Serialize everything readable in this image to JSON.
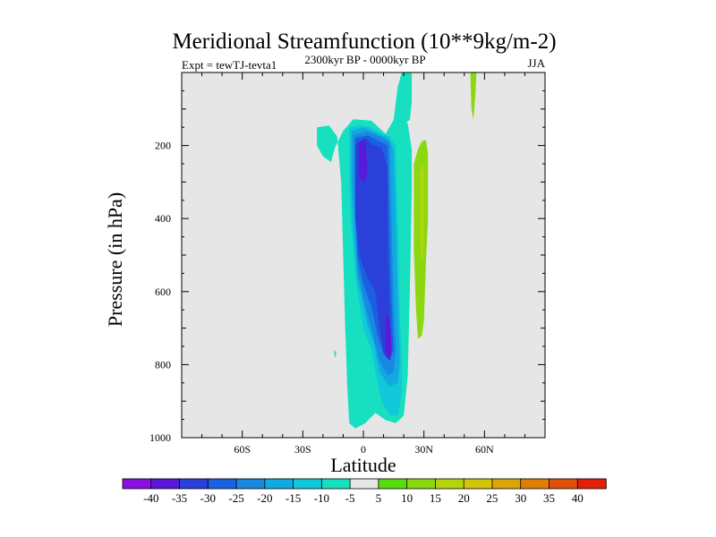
{
  "chart_data": {
    "type": "contour",
    "title": "Meridional Streamfunction (10**9kg/m-2)",
    "subtitle_left": "Expt = tewTJ-tevta1",
    "subtitle_center": "2300kyr BP - 0000kyr BP",
    "subtitle_right": "JJA",
    "xlabel": "Latitude",
    "ylabel": "Pressure (in hPa)",
    "x_ticks": [
      {
        "value": -60,
        "label": "60S"
      },
      {
        "value": -30,
        "label": "30S"
      },
      {
        "value": 0,
        "label": "0"
      },
      {
        "value": 30,
        "label": "30N"
      },
      {
        "value": 60,
        "label": "60N"
      }
    ],
    "y_ticks": [
      {
        "value": 200,
        "label": "200"
      },
      {
        "value": 400,
        "label": "400"
      },
      {
        "value": 600,
        "label": "600"
      },
      {
        "value": 800,
        "label": "800"
      },
      {
        "value": 1000,
        "label": "1000"
      }
    ],
    "xlim": [
      -90,
      90
    ],
    "ylim": [
      1000,
      0
    ],
    "colorbar": {
      "labels": [
        "-40",
        "-35",
        "-30",
        "-25",
        "-20",
        "-15",
        "-10",
        "-5",
        "5",
        "10",
        "15",
        "20",
        "25",
        "30",
        "35",
        "40"
      ],
      "colors": [
        "#8a10e0",
        "#5a18d8",
        "#2a40d8",
        "#1a60e0",
        "#1888e0",
        "#12a8e0",
        "#10c8d8",
        "#16e0c0",
        "#e6e6e6",
        "#58dc10",
        "#8cd810",
        "#b4d40c",
        "#d2c408",
        "#dca408",
        "#e07c08",
        "#e05008",
        "#e02008"
      ]
    },
    "regions": [
      {
        "level": "-5",
        "points": [
          [
            -23,
            150
          ],
          [
            -17,
            145
          ],
          [
            -13,
            175
          ],
          [
            -11,
            300
          ],
          [
            -10,
            500
          ],
          [
            -9,
            700
          ],
          [
            -8,
            860
          ],
          [
            -7,
            960
          ],
          [
            -4,
            975
          ],
          [
            1,
            960
          ],
          [
            6,
            932
          ],
          [
            11,
            952
          ],
          [
            16,
            960
          ],
          [
            20,
            940
          ],
          [
            22,
            830
          ],
          [
            23,
            600
          ],
          [
            24,
            320
          ],
          [
            24,
            210
          ],
          [
            22,
            140
          ],
          [
            19,
            115
          ],
          [
            15,
            130
          ],
          [
            11,
            168
          ],
          [
            4,
            132
          ],
          [
            -5,
            128
          ],
          [
            -10,
            160
          ],
          [
            -14,
            205
          ],
          [
            -16,
            245
          ],
          [
            -20,
            230
          ],
          [
            -23,
            200
          ]
        ]
      },
      {
        "level": "-5",
        "points": [
          [
            15,
            130
          ],
          [
            17,
            40
          ],
          [
            19,
            0
          ],
          [
            24,
            0
          ],
          [
            24,
            80
          ],
          [
            23,
            130
          ],
          [
            20,
            140
          ]
        ]
      },
      {
        "level": "-5",
        "points": [
          [
            -14.5,
            760
          ],
          [
            -13.5,
            765
          ],
          [
            -13.7,
            780
          ],
          [
            -14.2,
            778
          ]
        ]
      },
      {
        "level": "-10",
        "points": [
          [
            -7,
            150
          ],
          [
            -2,
            145
          ],
          [
            4,
            150
          ],
          [
            9,
            168
          ],
          [
            13,
            175
          ],
          [
            16,
            200
          ],
          [
            17,
            400
          ],
          [
            18,
            650
          ],
          [
            19,
            800
          ],
          [
            19,
            880
          ],
          [
            17,
            940
          ],
          [
            13,
            938
          ],
          [
            9,
            900
          ],
          [
            6,
            820
          ],
          [
            4,
            760
          ],
          [
            0,
            700
          ],
          [
            -4,
            560
          ],
          [
            -6,
            420
          ],
          [
            -7,
            300
          ]
        ]
      },
      {
        "level": "-15",
        "points": [
          [
            -6,
            160
          ],
          [
            0,
            150
          ],
          [
            6,
            165
          ],
          [
            12,
            178
          ],
          [
            15,
            210
          ],
          [
            16,
            400
          ],
          [
            17,
            620
          ],
          [
            18,
            790
          ],
          [
            17,
            850
          ],
          [
            13,
            860
          ],
          [
            8,
            820
          ],
          [
            5,
            740
          ],
          [
            2,
            690
          ],
          [
            -3,
            560
          ],
          [
            -5,
            420
          ],
          [
            -6,
            300
          ]
        ]
      },
      {
        "level": "-20",
        "points": [
          [
            -5,
            170
          ],
          [
            2,
            162
          ],
          [
            8,
            175
          ],
          [
            13,
            190
          ],
          [
            14,
            420
          ],
          [
            15,
            620
          ],
          [
            16,
            760
          ],
          [
            15,
            820
          ],
          [
            12,
            830
          ],
          [
            8,
            790
          ],
          [
            4,
            700
          ],
          [
            1,
            640
          ],
          [
            -3,
            540
          ],
          [
            -4,
            420
          ],
          [
            -5,
            300
          ]
        ]
      },
      {
        "level": "-25",
        "points": [
          [
            -4,
            180
          ],
          [
            2,
            172
          ],
          [
            7,
            185
          ],
          [
            12,
            200
          ],
          [
            13,
            430
          ],
          [
            14,
            630
          ],
          [
            15,
            760
          ],
          [
            13,
            790
          ],
          [
            10,
            770
          ],
          [
            7,
            720
          ],
          [
            4,
            640
          ],
          [
            0,
            580
          ],
          [
            -3,
            500
          ],
          [
            -4,
            330
          ]
        ]
      },
      {
        "level": "-30",
        "points": [
          [
            -4,
            195
          ],
          [
            1,
            180
          ],
          [
            5,
            200
          ],
          [
            9,
            205
          ],
          [
            12,
            260
          ],
          [
            12,
            460
          ],
          [
            13,
            640
          ],
          [
            14,
            760
          ],
          [
            13,
            790
          ],
          [
            10,
            770
          ],
          [
            8,
            700
          ],
          [
            6,
            600
          ],
          [
            2,
            560
          ],
          [
            -2,
            500
          ],
          [
            -4,
            400
          ]
        ]
      },
      {
        "level": "-35",
        "points": [
          [
            -2,
            190
          ],
          [
            1,
            185
          ],
          [
            2,
            260
          ],
          [
            1,
            300
          ],
          [
            -2,
            290
          ]
        ]
      },
      {
        "level": "-35",
        "points": [
          [
            11,
            660
          ],
          [
            13,
            680
          ],
          [
            14,
            760
          ],
          [
            13,
            790
          ],
          [
            11,
            760
          ]
        ]
      },
      {
        "level": "10",
        "points": [
          [
            25,
            250
          ],
          [
            27,
            210
          ],
          [
            29,
            188
          ],
          [
            31,
            185
          ],
          [
            32,
            220
          ],
          [
            32,
            400
          ],
          [
            31,
            520
          ],
          [
            30,
            680
          ],
          [
            29,
            720
          ],
          [
            27,
            730
          ],
          [
            26,
            640
          ],
          [
            25,
            480
          ]
        ]
      },
      {
        "level": "15",
        "points": [
          [
            28,
            280
          ],
          [
            29,
            250
          ],
          [
            30,
            270
          ],
          [
            30,
            400
          ],
          [
            29.5,
            520
          ],
          [
            28.5,
            500
          ],
          [
            28,
            400
          ]
        ]
      },
      {
        "level": "10",
        "points": [
          [
            53,
            0
          ],
          [
            56,
            0
          ],
          [
            55.5,
            60
          ],
          [
            54.5,
            130
          ],
          [
            53.5,
            100
          ]
        ]
      }
    ]
  }
}
